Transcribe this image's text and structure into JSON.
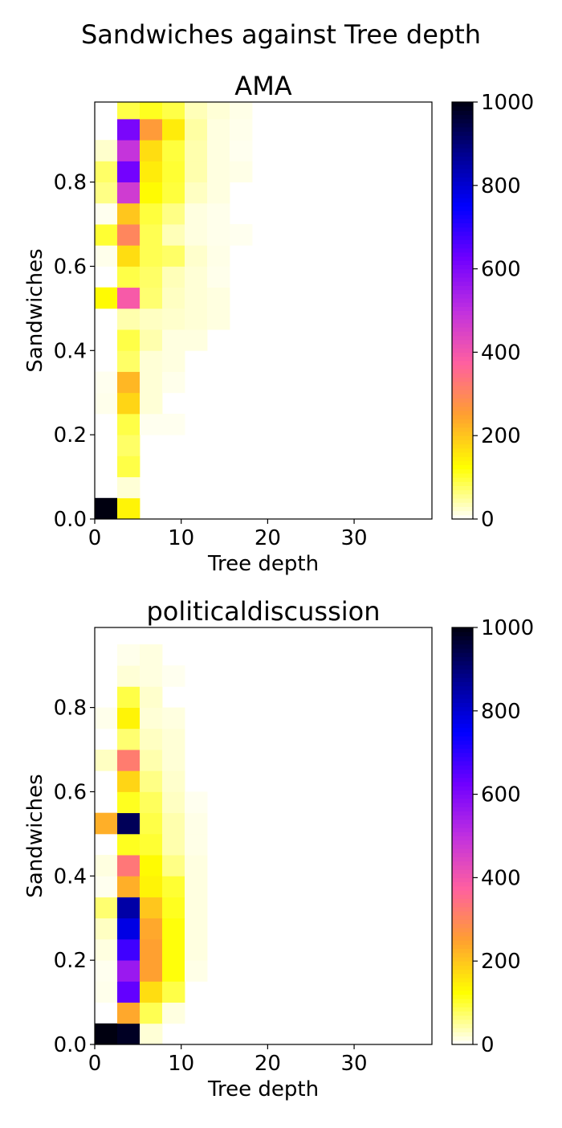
{
  "figure": {
    "suptitle": "Sandwiches against Tree depth"
  },
  "colormap": {
    "name": "gnuplot2_r",
    "stops": [
      "#ffffff",
      "#ffff00",
      "#ffa030",
      "#ff60a0",
      "#c030e0",
      "#7000ff",
      "#0000ff",
      "#000090",
      "#000010"
    ]
  },
  "chart_data": [
    {
      "type": "heatmap",
      "title": "AMA",
      "xlabel": "Tree depth",
      "ylabel": "Sandwiches",
      "xlim": [
        0,
        39
      ],
      "ylim": [
        0,
        0.99
      ],
      "x_ticks": [
        0,
        10,
        20,
        30
      ],
      "y_ticks": [
        0.0,
        0.2,
        0.4,
        0.6,
        0.8
      ],
      "x_tick_labels": [
        "0",
        "10",
        "20",
        "30"
      ],
      "y_tick_labels": [
        "0.0",
        "0.2",
        "0.4",
        "0.6",
        "0.8"
      ],
      "colorbar": {
        "min": 0,
        "max": 1000,
        "ticks": [
          0,
          200,
          400,
          600,
          800,
          1000
        ],
        "tick_labels": [
          "0",
          "200",
          "400",
          "600",
          "800",
          "1000"
        ]
      },
      "x_bin_edges": [
        0,
        2.6,
        5.2,
        7.8,
        10.4,
        13.0,
        15.6,
        18.2
      ],
      "y_bin_edges": [
        0,
        0.05,
        0.1,
        0.15,
        0.2,
        0.25,
        0.3,
        0.35,
        0.4,
        0.45,
        0.5,
        0.55,
        0.6,
        0.65,
        0.7,
        0.75,
        0.8,
        0.85,
        0.9,
        0.95,
        0.99
      ],
      "counts": [
        [
          1000,
          140,
          0,
          0,
          0,
          0,
          0
        ],
        [
          0,
          20,
          0,
          0,
          0,
          0,
          0
        ],
        [
          0,
          90,
          0,
          0,
          0,
          0,
          0
        ],
        [
          0,
          75,
          0,
          0,
          0,
          0,
          0
        ],
        [
          0,
          90,
          8,
          8,
          0,
          0,
          0
        ],
        [
          10,
          180,
          20,
          0,
          0,
          0,
          0
        ],
        [
          8,
          220,
          20,
          10,
          0,
          0,
          0
        ],
        [
          0,
          75,
          20,
          15,
          0,
          0,
          0
        ],
        [
          0,
          90,
          40,
          15,
          15,
          0,
          0
        ],
        [
          0,
          40,
          30,
          25,
          20,
          15,
          0
        ],
        [
          130,
          390,
          70,
          30,
          20,
          15,
          0
        ],
        [
          0,
          90,
          75,
          35,
          20,
          10,
          0
        ],
        [
          10,
          170,
          85,
          75,
          25,
          12,
          0
        ],
        [
          100,
          300,
          85,
          35,
          15,
          10,
          8
        ],
        [
          8,
          200,
          95,
          60,
          15,
          10,
          0
        ],
        [
          60,
          470,
          130,
          95,
          30,
          15,
          0
        ],
        [
          75,
          620,
          150,
          100,
          40,
          15,
          12
        ],
        [
          25,
          490,
          170,
          95,
          40,
          15,
          8
        ],
        [
          0,
          610,
          260,
          150,
          45,
          15,
          10
        ],
        [
          0,
          90,
          110,
          90,
          35,
          20,
          12
        ]
      ]
    },
    {
      "type": "heatmap",
      "title": "politicaldiscussion",
      "xlabel": "Tree depth",
      "ylabel": "Sandwiches",
      "xlim": [
        0,
        39
      ],
      "ylim": [
        0,
        0.99
      ],
      "x_ticks": [
        0,
        10,
        20,
        30
      ],
      "y_ticks": [
        0.0,
        0.2,
        0.4,
        0.6,
        0.8
      ],
      "x_tick_labels": [
        "0",
        "10",
        "20",
        "30"
      ],
      "y_tick_labels": [
        "0.0",
        "0.2",
        "0.4",
        "0.6",
        "0.8"
      ],
      "colorbar": {
        "min": 0,
        "max": 1000,
        "ticks": [
          0,
          200,
          400,
          600,
          800,
          1000
        ],
        "tick_labels": [
          "0",
          "200",
          "400",
          "600",
          "800",
          "1000"
        ]
      },
      "x_bin_edges": [
        0,
        2.6,
        5.2,
        7.8,
        10.4,
        13.0
      ],
      "y_bin_edges": [
        0,
        0.05,
        0.1,
        0.15,
        0.2,
        0.25,
        0.3,
        0.35,
        0.4,
        0.45,
        0.5,
        0.55,
        0.6,
        0.65,
        0.7,
        0.75,
        0.8,
        0.85,
        0.9,
        0.95,
        0.99
      ],
      "counts": [
        [
          1000,
          980,
          20,
          0,
          0
        ],
        [
          0,
          240,
          85,
          15,
          0
        ],
        [
          10,
          640,
          170,
          90,
          0
        ],
        [
          8,
          560,
          250,
          120,
          12
        ],
        [
          15,
          680,
          250,
          120,
          15
        ],
        [
          30,
          780,
          240,
          120,
          15
        ],
        [
          70,
          850,
          200,
          110,
          15
        ],
        [
          8,
          230,
          140,
          100,
          15
        ],
        [
          15,
          330,
          130,
          60,
          15
        ],
        [
          0,
          110,
          100,
          40,
          12
        ],
        [
          230,
          930,
          90,
          40,
          12
        ],
        [
          0,
          110,
          80,
          30,
          8
        ],
        [
          0,
          180,
          60,
          25,
          0
        ],
        [
          30,
          320,
          40,
          20,
          0
        ],
        [
          0,
          70,
          30,
          20,
          0
        ],
        [
          10,
          140,
          20,
          15,
          0
        ],
        [
          0,
          90,
          25,
          0,
          0
        ],
        [
          0,
          20,
          15,
          8,
          0
        ],
        [
          0,
          10,
          15,
          0,
          0
        ],
        [
          0,
          0,
          0,
          0,
          0
        ]
      ]
    }
  ]
}
